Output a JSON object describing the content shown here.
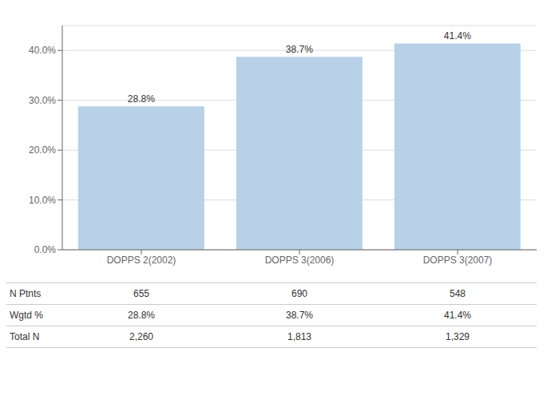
{
  "chart_data": {
    "type": "bar",
    "categories": [
      "DOPPS 2(2002)",
      "DOPPS 3(2006)",
      "DOPPS 3(2007)"
    ],
    "values": [
      28.8,
      38.7,
      41.4
    ],
    "value_labels": [
      "28.8%",
      "38.7%",
      "41.4%"
    ],
    "data_labels": true,
    "color": "#b8d0e8",
    "ylim": [
      0,
      45
    ],
    "yticks": [
      {
        "value": 0,
        "label": "0.0%"
      },
      {
        "value": 10,
        "label": "10.0%"
      },
      {
        "value": 20,
        "label": "20.0%"
      },
      {
        "value": 30,
        "label": "30.0%"
      },
      {
        "value": 40,
        "label": "40.0%"
      }
    ],
    "grid": true,
    "table": {
      "rows": [
        {
          "label": "N Ptnts",
          "values": [
            "655",
            "690",
            "548"
          ]
        },
        {
          "label": "Wgtd %",
          "values": [
            "28.8%",
            "38.7%",
            "41.4%"
          ]
        },
        {
          "label": "Total N",
          "values": [
            "2,260",
            "1,813",
            "1,329"
          ]
        }
      ]
    }
  }
}
